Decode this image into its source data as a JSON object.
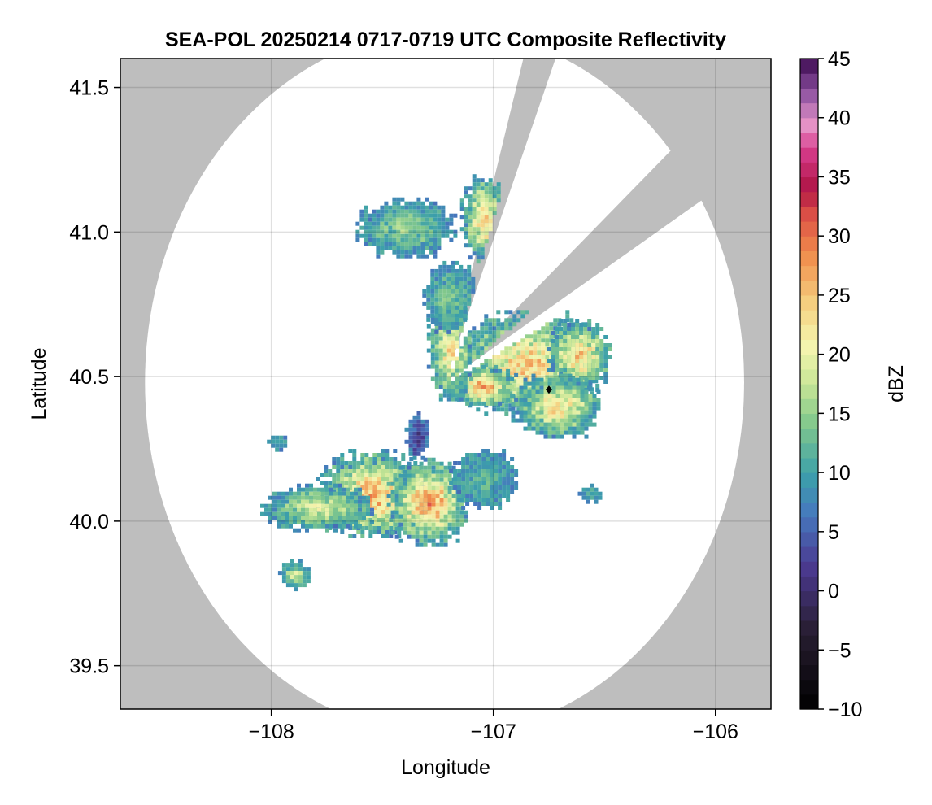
{
  "chart_data": {
    "type": "heatmap",
    "title": "SEA-POL 20250214 0717-0719 UTC Composite Reflectivity",
    "xlabel": "Longitude",
    "ylabel": "Latitude",
    "xlim": [
      -108.68,
      -105.75
    ],
    "ylim": [
      39.35,
      41.6
    ],
    "xticks": [
      -108,
      -107,
      -106
    ],
    "xtick_labels": [
      "−108",
      "−107",
      "−106"
    ],
    "yticks": [
      39.5,
      40.0,
      40.5,
      41.0,
      41.5
    ],
    "ytick_labels": [
      "39.5",
      "40.0",
      "40.5",
      "41.0",
      "41.5"
    ],
    "grid": true,
    "background_color": "#bebebe",
    "radar_site": {
      "lon": -107.22,
      "lat": 40.48
    },
    "radar_max_range_deg": 1.42,
    "blocked_sectors": [
      [
        16,
        22
      ],
      [
        49,
        59
      ]
    ],
    "marker": {
      "lon": -106.75,
      "lat": 40.455,
      "shape": "diamond"
    },
    "colorbar": {
      "label": "dBZ",
      "min": -10,
      "max": 45,
      "ticks": [
        -10,
        -5,
        0,
        5,
        10,
        15,
        20,
        25,
        30,
        35,
        40,
        45
      ],
      "tick_labels": [
        "−10",
        "−5",
        "0",
        "5",
        "10",
        "15",
        "20",
        "25",
        "30",
        "35",
        "40",
        "45"
      ],
      "colormap": "Spectral_r"
    },
    "echo_regions": [
      {
        "lon": -106.85,
        "lat": 40.55,
        "rlon": 0.32,
        "rlat": 0.18,
        "peak": 26
      },
      {
        "lon": -106.62,
        "lat": 40.58,
        "rlon": 0.14,
        "rlat": 0.12,
        "peak": 27
      },
      {
        "lon": -106.72,
        "lat": 40.4,
        "rlon": 0.2,
        "rlat": 0.11,
        "peak": 24
      },
      {
        "lon": -107.05,
        "lat": 40.47,
        "rlon": 0.15,
        "rlat": 0.07,
        "peak": 28
      },
      {
        "lon": -107.2,
        "lat": 40.6,
        "rlon": 0.1,
        "rlat": 0.18,
        "peak": 24
      },
      {
        "lon": -107.2,
        "lat": 40.78,
        "rlon": 0.12,
        "rlat": 0.12,
        "peak": 14
      },
      {
        "lon": -107.05,
        "lat": 41.05,
        "rlon": 0.1,
        "rlat": 0.15,
        "peak": 26
      },
      {
        "lon": -107.4,
        "lat": 41.02,
        "rlon": 0.22,
        "rlat": 0.1,
        "peak": 16
      },
      {
        "lon": -107.55,
        "lat": 40.1,
        "rlon": 0.25,
        "rlat": 0.15,
        "peak": 28
      },
      {
        "lon": -107.3,
        "lat": 40.07,
        "rlon": 0.18,
        "rlat": 0.15,
        "peak": 30
      },
      {
        "lon": -107.8,
        "lat": 40.05,
        "rlon": 0.25,
        "rlat": 0.08,
        "peak": 20
      },
      {
        "lon": -107.05,
        "lat": 40.15,
        "rlon": 0.15,
        "rlat": 0.1,
        "peak": 12
      },
      {
        "lon": -107.9,
        "lat": 39.82,
        "rlon": 0.07,
        "rlat": 0.05,
        "peak": 20
      },
      {
        "lon": -106.57,
        "lat": 40.1,
        "rlon": 0.05,
        "rlat": 0.03,
        "peak": 12
      },
      {
        "lon": -107.98,
        "lat": 40.28,
        "rlon": 0.04,
        "rlat": 0.03,
        "peak": 12
      },
      {
        "lon": -107.35,
        "lat": 40.3,
        "rlon": 0.05,
        "rlat": 0.08,
        "peak": 0
      }
    ]
  }
}
